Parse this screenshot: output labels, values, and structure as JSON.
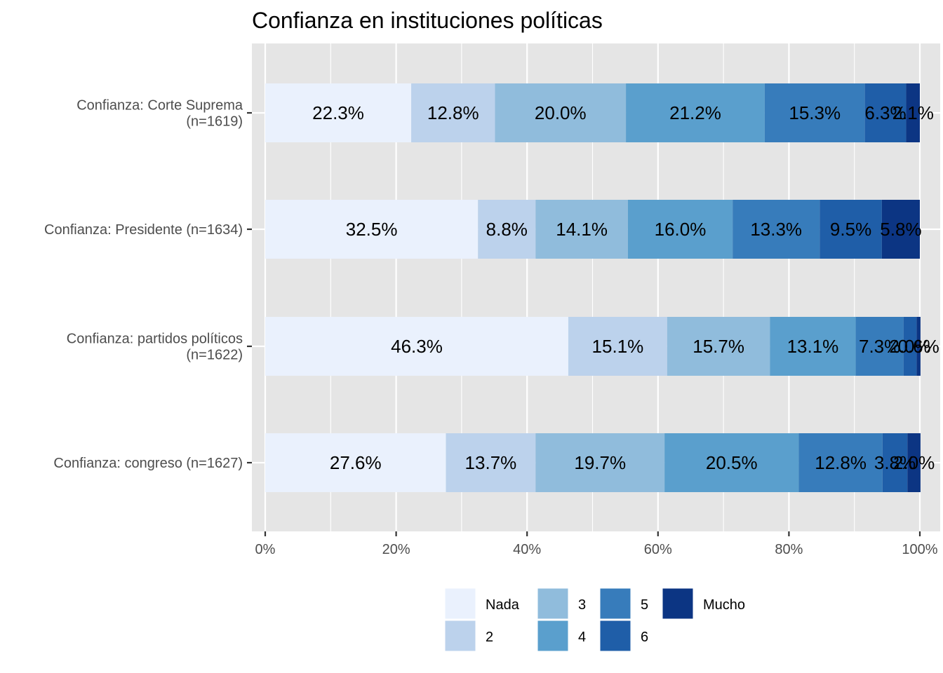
{
  "chart_data": {
    "type": "bar",
    "orientation": "horizontal",
    "stacked": true,
    "title": "Confianza en instituciones políticas",
    "xlabel": "",
    "ylabel": "",
    "xlim": [
      0,
      100
    ],
    "x_ticks": [
      "0%",
      "20%",
      "40%",
      "60%",
      "80%",
      "100%"
    ],
    "grid": true,
    "legend_position": "bottom",
    "categories": [
      [
        "Confianza: Corte Suprema",
        "(n=1619)"
      ],
      [
        "Confianza: Presidente (n=1634)"
      ],
      [
        "Confianza: partidos políticos",
        "(n=1622)"
      ],
      [
        "Confianza: congreso (n=1627)"
      ]
    ],
    "series": [
      {
        "name": "Nada",
        "color": "#eaf1fd",
        "values": [
          22.3,
          32.5,
          46.3,
          27.6
        ],
        "labels": [
          "22.3%",
          "32.5%",
          "46.3%",
          "27.6%"
        ]
      },
      {
        "name": "2",
        "color": "#bcd2ec",
        "values": [
          12.8,
          8.8,
          15.1,
          13.7
        ],
        "labels": [
          "12.8%",
          "8.8%",
          "15.1%",
          "13.7%"
        ]
      },
      {
        "name": "3",
        "color": "#90bcdc",
        "values": [
          20.0,
          14.1,
          15.7,
          19.7
        ],
        "labels": [
          "20.0%",
          "14.1%",
          "15.7%",
          "19.7%"
        ]
      },
      {
        "name": "4",
        "color": "#5a9fcd",
        "values": [
          21.2,
          16.0,
          13.1,
          20.5
        ],
        "labels": [
          "21.2%",
          "16.0%",
          "13.1%",
          "20.5%"
        ]
      },
      {
        "name": "5",
        "color": "#377cbb",
        "values": [
          15.3,
          13.3,
          7.3,
          12.8
        ],
        "labels": [
          "15.3%",
          "13.3%",
          "7.3%",
          "12.8%"
        ]
      },
      {
        "name": "6",
        "color": "#1f5ea8",
        "values": [
          6.3,
          9.5,
          2.0,
          3.8
        ],
        "labels": [
          "6.3%",
          "9.5%",
          "2.0%",
          "3.8%"
        ]
      },
      {
        "name": "Mucho",
        "color": "#0c3583",
        "values": [
          2.1,
          5.8,
          0.6,
          2.0
        ],
        "labels": [
          "2.1%",
          "5.8%",
          "0.6%",
          "2.0%"
        ]
      }
    ]
  }
}
